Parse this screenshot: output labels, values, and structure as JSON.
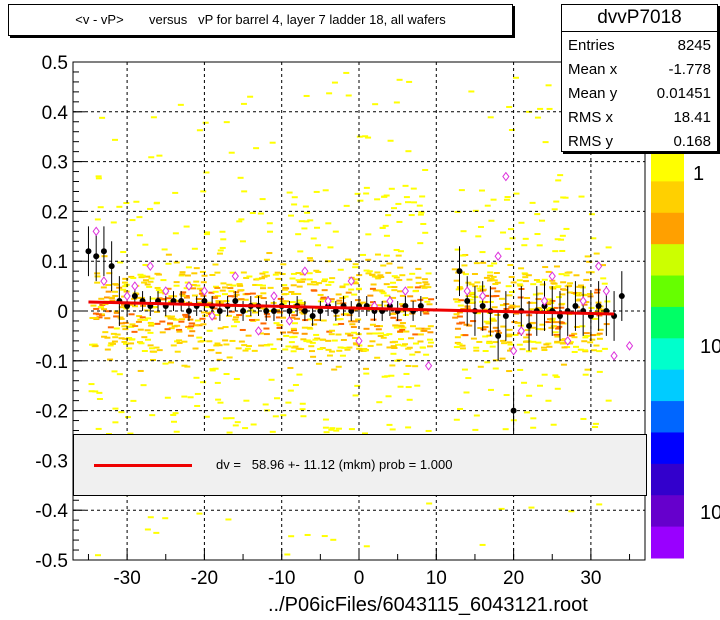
{
  "title": "<v - vP>       versus   vP for barrel 4, layer 7 ladder 18, all wafers",
  "stats": {
    "name": "dvvP7018",
    "rows": [
      {
        "label": "Entries",
        "value": "8245"
      },
      {
        "label": "Mean x",
        "value": "-1.778"
      },
      {
        "label": "Mean y",
        "value": "0.01451"
      },
      {
        "label": "RMS x",
        "value": "18.41"
      },
      {
        "label": "RMS y",
        "value": "0.168"
      }
    ]
  },
  "fit_legend": "dv =   58.96 +- 11.12 (mkm) prob = 1.000",
  "footer": "../P06icFiles/6043115_6043121.root",
  "z_axis_labels": [
    "1",
    "10",
    "10"
  ],
  "colors": {
    "fit": "#ee0000",
    "profile_points": "#000000",
    "open_markers": "#dd33dd",
    "grid": "#000000"
  },
  "chart_data": {
    "type": "scatter",
    "x_range": [
      -37,
      37
    ],
    "y_range": [
      -0.5,
      0.5
    ],
    "x_ticks": [
      "-30",
      "-20",
      "-10",
      "0",
      "10",
      "20",
      "30"
    ],
    "y_ticks": [
      "0.5",
      "0.4",
      "0.3",
      "0.2",
      "0.1",
      "0",
      "-0.1",
      "-0.2",
      "-0.3",
      "-0.4",
      "-0.5"
    ],
    "grid": true,
    "fit": {
      "x": [
        -35,
        33
      ],
      "y": [
        0.018,
        -0.006
      ]
    },
    "profile": {
      "x": [
        -35,
        -34,
        -33,
        -32,
        -31,
        -30,
        -29,
        -28,
        -27,
        -26,
        -25,
        -24,
        -23,
        -22,
        -21,
        -20,
        -19,
        -18,
        -17,
        -16,
        -15,
        -14,
        -13,
        -12,
        -11,
        -10,
        -9,
        -8,
        -7,
        -6,
        -5,
        -4,
        -3,
        -2,
        -1,
        0,
        1,
        2,
        3,
        4,
        5,
        6,
        7,
        8,
        13,
        14,
        15,
        16,
        17,
        18,
        19,
        20,
        21,
        22,
        23,
        24,
        25,
        26,
        27,
        28,
        29,
        30,
        31,
        32,
        33,
        34
      ],
      "y": [
        0.12,
        0.11,
        0.12,
        0.09,
        0.02,
        0.01,
        0.03,
        0.02,
        0.01,
        0.02,
        0.01,
        0.02,
        0.02,
        0.0,
        0.01,
        0.02,
        0.01,
        0.0,
        0.01,
        0.02,
        0.0,
        0.01,
        0.01,
        0.0,
        0.0,
        0.01,
        0.0,
        0.01,
        0.0,
        -0.01,
        0.0,
        0.01,
        0.0,
        0.01,
        0.0,
        0.01,
        0.01,
        0.0,
        0.0,
        0.01,
        0.0,
        0.01,
        0.0,
        0.01,
        0.08,
        0.02,
        0.0,
        0.01,
        0.0,
        -0.05,
        -0.01,
        -0.2,
        0.0,
        -0.03,
        0.0,
        0.01,
        0.0,
        -0.01,
        0.0,
        0.01,
        0.0,
        -0.01,
        0.01,
        0.0,
        -0.01,
        0.03
      ]
    },
    "open_markers": {
      "x": [
        -34,
        -33,
        -30,
        -29,
        -27,
        -25,
        -22,
        -20,
        -19,
        -16,
        -13,
        -11,
        -9,
        -7,
        -4,
        -1,
        0,
        2,
        4,
        6,
        9,
        14,
        16,
        18,
        19,
        20,
        21,
        24,
        25,
        27,
        29,
        31,
        32,
        33,
        35
      ],
      "y": [
        0.16,
        0.06,
        0.03,
        0.05,
        0.09,
        0.04,
        0.05,
        0.04,
        -0.01,
        0.07,
        -0.04,
        0.03,
        -0.02,
        0.08,
        0.02,
        0.06,
        -0.06,
        0.01,
        0.02,
        0.04,
        -0.11,
        0.04,
        0.03,
        0.11,
        0.27,
        -0.08,
        -0.04,
        0.02,
        0.07,
        -0.06,
        0.02,
        0.09,
        0.04,
        -0.09,
        -0.07
      ]
    }
  }
}
